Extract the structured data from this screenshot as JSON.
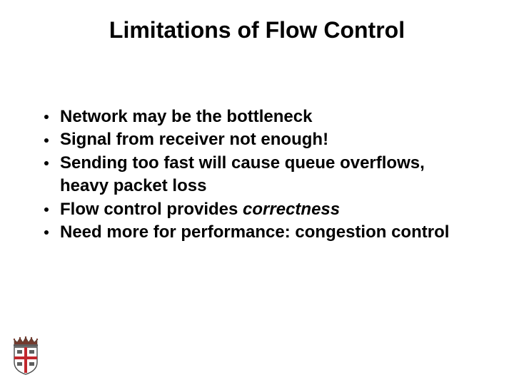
{
  "title": {
    "text": "Limitations of Flow Control",
    "fontsize": 32,
    "color": "#000000"
  },
  "bullets": {
    "fontsize": 24,
    "line_height": 1.35,
    "color": "#000000",
    "items": [
      {
        "runs": [
          {
            "text": "Network may be the bottleneck"
          }
        ]
      },
      {
        "runs": [
          {
            "text": "Signal from receiver not enough!"
          }
        ]
      },
      {
        "runs": [
          {
            "text": "Sending too fast will cause queue overflows, heavy packet loss"
          }
        ]
      },
      {
        "runs": [
          {
            "text": "Flow control provides "
          },
          {
            "text": "correctness",
            "italic": true
          }
        ]
      },
      {
        "runs": [
          {
            "text": "Need more for performance: congestion control"
          }
        ]
      }
    ]
  },
  "logo": {
    "crown_color": "#733a2e",
    "shield_stroke": "#4a4a4a",
    "shield_fill": "#ffffff",
    "cross_color": "#c1272d"
  },
  "background_color": "#ffffff"
}
